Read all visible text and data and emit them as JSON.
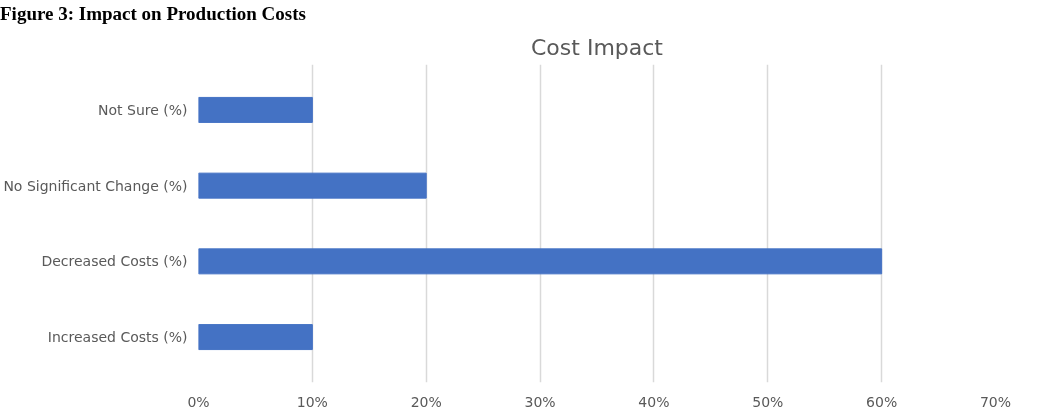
{
  "chart_data": {
    "type": "bar",
    "orientation": "horizontal",
    "title": "Cost Impact",
    "annotations": [
      "Figure 3: Impact on Production Costs"
    ],
    "categories": [
      "Not Sure (%)",
      "No Significant Change (%)",
      "Decreased Costs (%)",
      "Increased Costs (%)"
    ],
    "values": [
      10,
      20,
      60,
      10
    ],
    "color": "#4472c4",
    "xlim": [
      0,
      70
    ],
    "xticks": [
      {
        "value": 0,
        "label": "0%"
      },
      {
        "value": 10,
        "label": "10%"
      },
      {
        "value": 20,
        "label": "20%"
      },
      {
        "value": 30,
        "label": "30%"
      },
      {
        "value": 40,
        "label": "40%"
      },
      {
        "value": 50,
        "label": "50%"
      },
      {
        "value": 60,
        "label": "60%"
      },
      {
        "value": 70,
        "label": "70%"
      }
    ],
    "grid": "x"
  }
}
